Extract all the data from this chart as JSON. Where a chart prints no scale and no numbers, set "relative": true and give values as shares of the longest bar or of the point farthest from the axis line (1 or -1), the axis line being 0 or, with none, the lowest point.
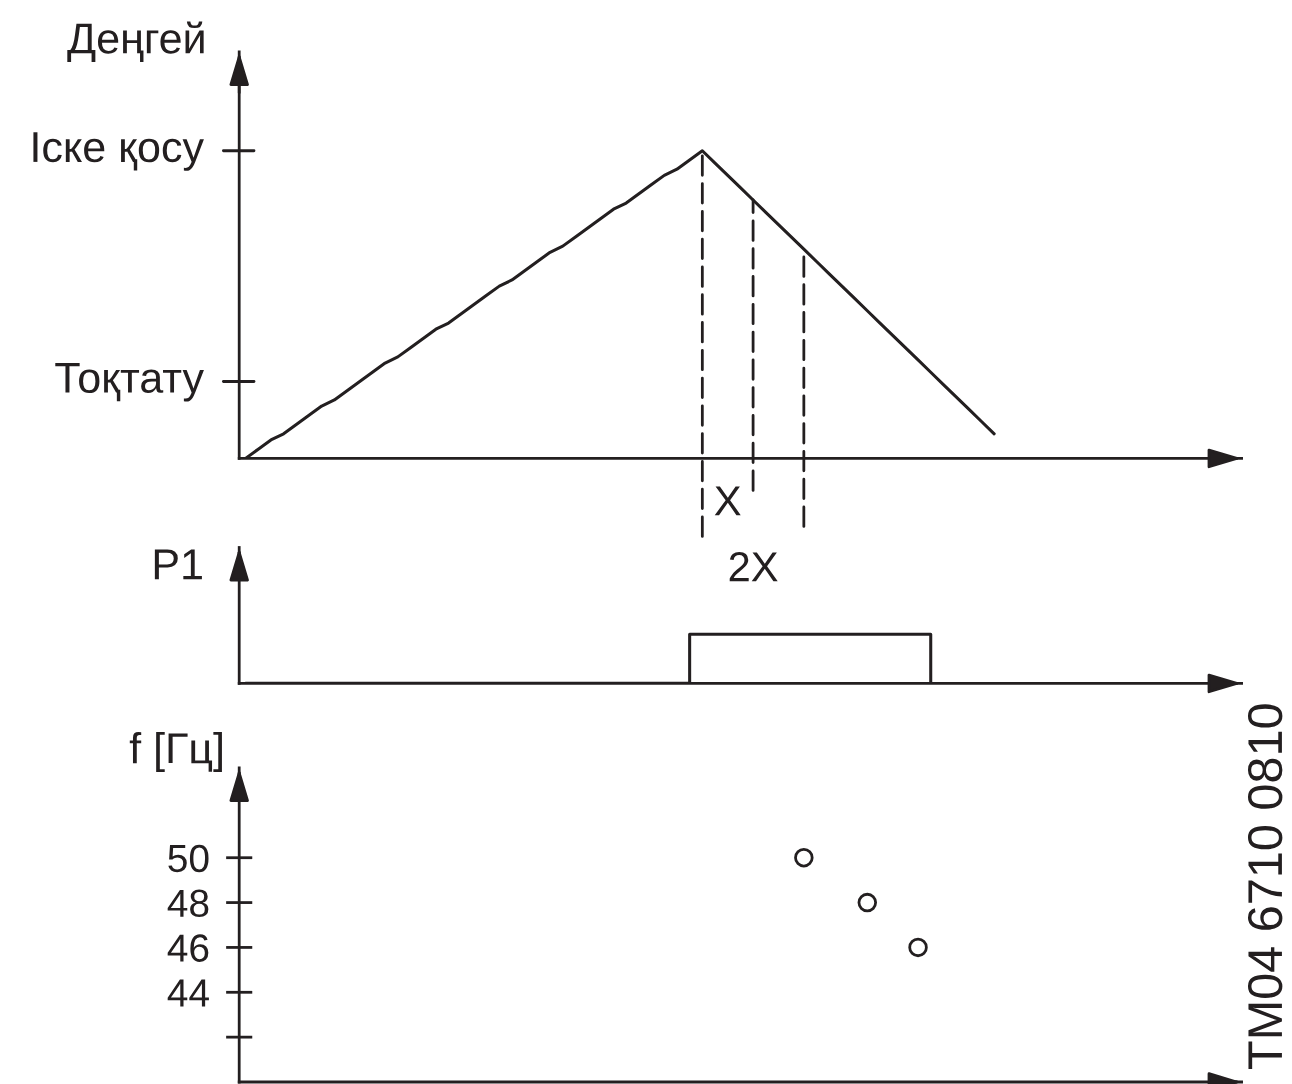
{
  "chart_data": [
    {
      "type": "line",
      "ylabel": "Деңгей",
      "relative": true,
      "categories": [
        null,
        null,
        null,
        null,
        null,
        null,
        null,
        null,
        null,
        null,
        null,
        null,
        null,
        null,
        null,
        null,
        null,
        null,
        null,
        null,
        null,
        null,
        null,
        null,
        null,
        null,
        null,
        null,
        null,
        null,
        null,
        null,
        null,
        null,
        null,
        null,
        null,
        null,
        null,
        null,
        null,
        null,
        null,
        null,
        null,
        null,
        null,
        null,
        null,
        null,
        null,
        null,
        null,
        null,
        null,
        null,
        null,
        null,
        null,
        null,
        null,
        null,
        null,
        null,
        null,
        null,
        null,
        null,
        null,
        null,
        null,
        null,
        null,
        null,
        null,
        null,
        null,
        null,
        null
      ],
      "ref_lines": [
        {
          "axis": "y",
          "value": 1,
          "label": "Іске қосу",
          "color": "#231f20"
        },
        {
          "axis": "y",
          "value": 0.25,
          "label": "Тоқтату",
          "color": "#231f20"
        }
      ],
      "series": [
        {
          "color": "#231f20",
          "values": [
            0,
            0.03,
            0.06,
            0.08,
            0.11,
            0.14,
            0.17,
            0.19,
            0.22,
            0.25,
            0.28,
            0.31,
            0.33,
            0.36,
            0.39,
            0.42,
            0.44,
            0.47,
            0.5,
            0.53,
            0.56,
            0.58,
            0.61,
            0.64,
            0.67,
            0.69,
            0.72,
            0.75,
            0.78,
            0.81,
            0.83,
            0.86,
            0.89,
            0.92,
            0.94,
            0.97,
            1,
            0.96,
            0.92,
            0.88,
            0.84,
            0.8,
            0.76,
            0.72,
            0.68,
            0.64,
            0.6,
            0.56,
            0.52,
            0.48,
            0.44,
            0.4,
            0.36,
            0.32,
            0.28,
            0.24,
            0.2,
            0.16,
            0.12,
            0.08,
            null,
            null,
            null,
            null,
            null,
            null,
            null,
            null,
            null,
            null,
            null,
            null,
            null,
            null,
            null,
            null,
            null,
            null,
            null
          ]
        }
      ],
      "annotations": [
        "X",
        "2X"
      ]
    },
    {
      "type": "step",
      "ylabel": "P1",
      "relative": true,
      "categories": [
        null,
        null,
        null,
        null,
        null,
        null,
        null,
        null,
        null,
        null,
        null,
        null,
        null,
        null,
        null,
        null,
        null,
        null,
        null,
        null,
        null,
        null,
        null,
        null,
        null,
        null,
        null,
        null,
        null,
        null,
        null,
        null,
        null,
        null,
        null,
        null,
        null,
        null,
        null,
        null,
        null,
        null,
        null,
        null,
        null,
        null,
        null,
        null,
        null,
        null,
        null,
        null,
        null,
        null,
        null,
        null,
        null,
        null,
        null,
        null,
        null,
        null,
        null,
        null,
        null,
        null,
        null,
        null,
        null,
        null,
        null,
        null,
        null,
        null,
        null,
        null,
        null,
        null,
        null
      ],
      "series": [
        {
          "color": "#231f20",
          "values": [
            0,
            0,
            0,
            0,
            0,
            0,
            0,
            0,
            0,
            0,
            0,
            0,
            0,
            0,
            0,
            0,
            0,
            0,
            0,
            0,
            0,
            0,
            0,
            0,
            0,
            0,
            0,
            0,
            0,
            0,
            0,
            0,
            0,
            0,
            0,
            1,
            1,
            1,
            1,
            1,
            1,
            1,
            1,
            1,
            1,
            1,
            1,
            1,
            1,
            1,
            1,
            1,
            1,
            1,
            0,
            null,
            null,
            null,
            null,
            null,
            null,
            null,
            null,
            null,
            null,
            null,
            null,
            null,
            null,
            null,
            null,
            null,
            null,
            null,
            null,
            null,
            null,
            null,
            null
          ]
        }
      ]
    },
    {
      "type": "scatter",
      "ylabel": "f [Гц]",
      "tick_labels": "y",
      "marker": "circle",
      "ylim": [
        40,
        54
      ],
      "yticks": [
        50,
        48,
        46,
        44,
        {
          "value": 42,
          "label": null
        }
      ],
      "categories": [
        null,
        null,
        null,
        null,
        null,
        null,
        null,
        null,
        null,
        null,
        null,
        null,
        null,
        null,
        null,
        null,
        null,
        null,
        null,
        null,
        null,
        null,
        null,
        null,
        null,
        null,
        null,
        null,
        null,
        null,
        null,
        null,
        null,
        null,
        null,
        null,
        null,
        null,
        null,
        null,
        null,
        null,
        null,
        null,
        null,
        null,
        null,
        null,
        null,
        null,
        null,
        null,
        null,
        null,
        null,
        null,
        null,
        null,
        null,
        null,
        null,
        null,
        null,
        null,
        null,
        null,
        null,
        null,
        null,
        null,
        null,
        null,
        null,
        null,
        null,
        null,
        null,
        null,
        null
      ],
      "series": [
        {
          "color": "#231f20",
          "values": [
            null,
            null,
            null,
            null,
            null,
            null,
            null,
            null,
            null,
            null,
            null,
            null,
            null,
            null,
            null,
            null,
            null,
            null,
            null,
            null,
            null,
            null,
            null,
            null,
            null,
            null,
            null,
            null,
            null,
            null,
            null,
            null,
            null,
            null,
            null,
            null,
            null,
            null,
            null,
            null,
            null,
            null,
            null,
            null,
            50,
            null,
            null,
            null,
            null,
            48,
            null,
            null,
            null,
            46,
            null,
            null,
            null,
            null,
            null,
            null,
            null,
            null,
            null,
            null,
            null,
            null,
            null,
            null,
            null,
            null,
            null,
            null,
            null,
            null,
            null,
            null,
            null,
            null,
            null
          ]
        }
      ],
      "annotations": [
        "TM04 6710 0810"
      ]
    }
  ]
}
